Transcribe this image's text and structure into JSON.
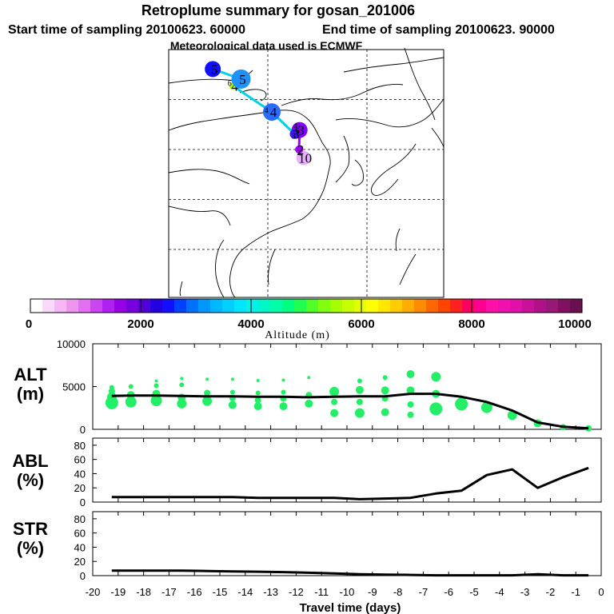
{
  "header": {
    "title": "Retroplume summary for gosan_201006",
    "start_label": "Start time of sampling 20100623. 60000",
    "end_label": "End time of sampling 20100623. 90000",
    "met_label": "Meteorological data used is ECMWF"
  },
  "map": {
    "track_color": "#00d2e6",
    "tail_color": "#a000ff",
    "points": [
      {
        "label": "10",
        "lon": 127.2,
        "lat": 33.3,
        "color": "#e8b0ff"
      },
      {
        "label": "2",
        "lon": 126.3,
        "lat": 35.0,
        "color": "#a000ff"
      },
      {
        "label": "3",
        "lon": 126.4,
        "lat": 38.9,
        "color": "#8000ff"
      },
      {
        "label": "3",
        "lon": 125.4,
        "lat": 38.1,
        "color": "#4010ff"
      },
      {
        "label": "4",
        "lon": 120.8,
        "lat": 42.5,
        "color": "#2a6cff"
      },
      {
        "label": "4",
        "lon": 113.0,
        "lat": 47.7,
        "color": "#b8ff00"
      },
      {
        "label": "5",
        "lon": 114.6,
        "lat": 49.1,
        "color": "#1e90ff"
      },
      {
        "label": "5",
        "lon": 108.9,
        "lat": 51.1,
        "color": "#1010ff"
      }
    ],
    "small_labels": [
      {
        "text": "6",
        "lon": 112.3,
        "lat": 47.7
      },
      {
        "text": "4",
        "lon": 119.7,
        "lat": 42.3
      },
      {
        "text": "4",
        "lon": 125.6,
        "lat": 39.2
      },
      {
        "text": "3",
        "lon": 125.2,
        "lat": 37.2
      },
      {
        "text": "6",
        "lon": 126.0,
        "lat": 38.2
      },
      {
        "text": "2",
        "lon": 126.3,
        "lat": 33.9
      }
    ]
  },
  "colorbar": {
    "colors": [
      "#ffffff",
      "#fad8fa",
      "#f5b8f5",
      "#ee96ee",
      "#e070f0",
      "#cc44f0",
      "#b020f0",
      "#9600e8",
      "#7800e0",
      "#5000d8",
      "#2400e0",
      "#1010ff",
      "#0040ff",
      "#0070ff",
      "#0098ff",
      "#00b8ff",
      "#00d0ff",
      "#00e6ff",
      "#00f2e8",
      "#00f8c8",
      "#00ffa6",
      "#00ff80",
      "#20ff50",
      "#50ff28",
      "#80ff10",
      "#a6ff00",
      "#c8ff00",
      "#e6ff00",
      "#ffff00",
      "#ffe800",
      "#ffcc00",
      "#ffae00",
      "#ff8c00",
      "#ff6800",
      "#ff4400",
      "#ff2020",
      "#ff0060",
      "#ff0090",
      "#ff10a8",
      "#f010b0",
      "#e010a8",
      "#c81098",
      "#b01088",
      "#981878",
      "#801060",
      "#6a1050"
    ],
    "tick_labels": [
      "0",
      "2000",
      "4000",
      "6000",
      "8000",
      "10000"
    ],
    "axis_label": "Altitude (m)"
  },
  "chart_data": [
    {
      "type": "scatter+line",
      "name": "ALT",
      "ylabel_line1": "ALT",
      "ylabel_line2": "(m)",
      "ylim": [
        0,
        10000
      ],
      "y_ticks": [
        0,
        5000,
        10000
      ],
      "x": [
        -19.25,
        -18.5,
        -17.5,
        -16.5,
        -15.5,
        -14.5,
        -13.5,
        -12.5,
        -11.5,
        -10.5,
        -9.5,
        -8.5,
        -7.5,
        -6.5,
        -5.5,
        -4.5,
        -3.5,
        -2.5,
        -1.5,
        -0.5
      ],
      "line": [
        3900,
        3950,
        3950,
        3900,
        3850,
        3850,
        3800,
        3800,
        3750,
        3800,
        3850,
        3850,
        4150,
        4150,
        3800,
        3200,
        2200,
        800,
        300,
        120
      ],
      "dots": [
        {
          "x": -19.25,
          "y": 3100,
          "r": 8
        },
        {
          "x": -19.25,
          "y": 3750,
          "r": 6
        },
        {
          "x": -19.25,
          "y": 4450,
          "r": 4
        },
        {
          "x": -19.25,
          "y": 4900,
          "r": 3
        },
        {
          "x": -18.5,
          "y": 3200,
          "r": 7
        },
        {
          "x": -18.5,
          "y": 4000,
          "r": 5
        },
        {
          "x": -18.5,
          "y": 5000,
          "r": 3
        },
        {
          "x": -17.5,
          "y": 3350,
          "r": 7
        },
        {
          "x": -17.5,
          "y": 4150,
          "r": 5
        },
        {
          "x": -17.5,
          "y": 5100,
          "r": 3
        },
        {
          "x": -17.5,
          "y": 5650,
          "r": 2
        },
        {
          "x": -16.5,
          "y": 3000,
          "r": 6
        },
        {
          "x": -16.5,
          "y": 3700,
          "r": 5
        },
        {
          "x": -16.5,
          "y": 5200,
          "r": 3
        },
        {
          "x": -16.5,
          "y": 5950,
          "r": 2
        },
        {
          "x": -15.5,
          "y": 3300,
          "r": 6
        },
        {
          "x": -15.5,
          "y": 4250,
          "r": 4
        },
        {
          "x": -15.5,
          "y": 5850,
          "r": 2
        },
        {
          "x": -14.5,
          "y": 2850,
          "r": 5
        },
        {
          "x": -14.5,
          "y": 3650,
          "r": 4
        },
        {
          "x": -14.5,
          "y": 4350,
          "r": 3
        },
        {
          "x": -14.5,
          "y": 5850,
          "r": 2
        },
        {
          "x": -13.5,
          "y": 2700,
          "r": 5
        },
        {
          "x": -13.5,
          "y": 3400,
          "r": 4
        },
        {
          "x": -13.5,
          "y": 4250,
          "r": 3
        },
        {
          "x": -13.5,
          "y": 5700,
          "r": 2
        },
        {
          "x": -12.5,
          "y": 2700,
          "r": 5
        },
        {
          "x": -12.5,
          "y": 3600,
          "r": 4
        },
        {
          "x": -12.5,
          "y": 4350,
          "r": 3
        },
        {
          "x": -12.5,
          "y": 5750,
          "r": 2
        },
        {
          "x": -11.5,
          "y": 3000,
          "r": 5
        },
        {
          "x": -11.5,
          "y": 4000,
          "r": 4
        },
        {
          "x": -11.5,
          "y": 6050,
          "r": 2
        },
        {
          "x": -10.5,
          "y": 1900,
          "r": 5
        },
        {
          "x": -10.5,
          "y": 3200,
          "r": 4
        },
        {
          "x": -10.5,
          "y": 4400,
          "r": 6
        },
        {
          "x": -9.5,
          "y": 1900,
          "r": 6
        },
        {
          "x": -9.5,
          "y": 3200,
          "r": 4
        },
        {
          "x": -9.5,
          "y": 4600,
          "r": 5
        },
        {
          "x": -9.5,
          "y": 5650,
          "r": 3
        },
        {
          "x": -8.5,
          "y": 2000,
          "r": 5
        },
        {
          "x": -8.5,
          "y": 3600,
          "r": 4
        },
        {
          "x": -8.5,
          "y": 4550,
          "r": 5
        },
        {
          "x": -8.5,
          "y": 6050,
          "r": 3
        },
        {
          "x": -7.5,
          "y": 1700,
          "r": 4
        },
        {
          "x": -7.5,
          "y": 2900,
          "r": 4
        },
        {
          "x": -7.5,
          "y": 4550,
          "r": 5
        },
        {
          "x": -7.5,
          "y": 6450,
          "r": 5
        },
        {
          "x": -6.5,
          "y": 2400,
          "r": 8
        },
        {
          "x": -6.5,
          "y": 4150,
          "r": 5
        },
        {
          "x": -6.5,
          "y": 6150,
          "r": 6
        },
        {
          "x": -5.5,
          "y": 2950,
          "r": 8
        },
        {
          "x": -4.5,
          "y": 2550,
          "r": 7
        },
        {
          "x": -3.5,
          "y": 1650,
          "r": 6
        },
        {
          "x": -2.5,
          "y": 700,
          "r": 5
        },
        {
          "x": -1.5,
          "y": 250,
          "r": 4
        },
        {
          "x": -0.5,
          "y": 100,
          "r": 4
        }
      ]
    },
    {
      "type": "line",
      "name": "ABL",
      "ylabel_line1": "ABL",
      "ylabel_line2": "(%)",
      "ylim": [
        0,
        90
      ],
      "y_ticks": [
        0,
        20,
        40,
        60,
        80
      ],
      "x": [
        -19.25,
        -18.5,
        -17.5,
        -16.5,
        -15.5,
        -14.5,
        -13.5,
        -12.5,
        -11.5,
        -10.5,
        -9.5,
        -8.5,
        -7.5,
        -6.5,
        -5.5,
        -4.5,
        -3.5,
        -2.5,
        -1.5,
        -0.5
      ],
      "values": [
        7,
        7,
        7,
        7,
        7,
        7,
        6,
        6,
        6,
        6,
        4,
        5,
        6,
        12,
        16,
        38,
        46,
        20,
        35,
        48
      ]
    },
    {
      "type": "line",
      "name": "STR",
      "ylabel_line1": "STR",
      "ylabel_line2": "(%)",
      "ylim": [
        0,
        90
      ],
      "y_ticks": [
        0,
        20,
        40,
        60,
        80
      ],
      "x": [
        -19.25,
        -18.5,
        -17.5,
        -16.5,
        -15.5,
        -14.5,
        -13.5,
        -12.5,
        -11.5,
        -10.5,
        -9.5,
        -8.5,
        -7.5,
        -6.5,
        -5.5,
        -4.5,
        -3.5,
        -2.5,
        -1.5,
        -0.5
      ],
      "values": [
        7,
        7,
        7,
        7,
        6.5,
        6,
        5.5,
        5,
        4,
        3,
        2,
        1.5,
        1,
        0.5,
        0.5,
        0.5,
        0.5,
        2,
        0.5,
        0.5
      ]
    }
  ],
  "x_axis": {
    "xlim": [
      -20,
      0
    ],
    "tick_labels": [
      "-20",
      "-19",
      "-18",
      "-17",
      "-16",
      "-15",
      "-14",
      "-13",
      "-12",
      "-11",
      "-10",
      "-9",
      "-8",
      "-7",
      "-6",
      "-5",
      "-4",
      "-3",
      "-2",
      "-1",
      "0"
    ],
    "label": "Travel time (days)"
  },
  "colors": {
    "dot": "#22ee66",
    "line": "#000000",
    "map_line": "#000000"
  }
}
